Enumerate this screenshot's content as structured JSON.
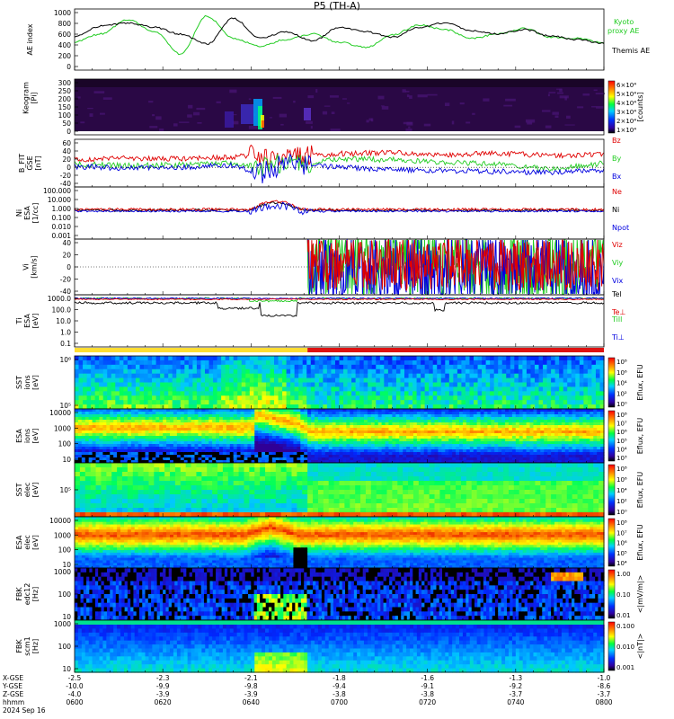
{
  "title": "P5 (TH-A)",
  "date_label": "2024 Sep 16",
  "colors": {
    "black": "#000000",
    "red": "#e00000",
    "green": "#22cc22",
    "blue": "#0000e0"
  },
  "chart_data": [
    {
      "type": "line",
      "panel": "ae",
      "ylabel": "AE index",
      "yticks": [
        "1000",
        "800",
        "600",
        "400",
        "200",
        "0"
      ],
      "ylim": [
        0,
        1000
      ],
      "series": [
        {
          "name": "Kyoto",
          "name2": "proxy AE",
          "color": "#22cc22",
          "x": [
            0,
            0.05,
            0.1,
            0.15,
            0.2,
            0.25,
            0.3,
            0.35,
            0.4,
            0.45,
            0.5,
            0.55,
            0.6,
            0.65,
            0.7,
            0.75,
            0.8,
            0.85,
            0.9,
            0.95,
            1
          ],
          "y": [
            460,
            600,
            860,
            650,
            240,
            920,
            520,
            380,
            500,
            600,
            450,
            360,
            580,
            760,
            680,
            520,
            600,
            700,
            540,
            520,
            440
          ]
        },
        {
          "name": "Themis AE",
          "color": "#000000",
          "x": [
            0,
            0.05,
            0.1,
            0.15,
            0.2,
            0.25,
            0.3,
            0.35,
            0.4,
            0.45,
            0.5,
            0.55,
            0.6,
            0.65,
            0.7,
            0.75,
            0.8,
            0.85,
            0.9,
            0.95,
            1
          ],
          "y": [
            560,
            740,
            800,
            720,
            600,
            420,
            880,
            520,
            640,
            480,
            720,
            640,
            540,
            720,
            800,
            660,
            600,
            680,
            560,
            500,
            430
          ]
        }
      ]
    },
    {
      "type": "heatmap",
      "panel": "keogram",
      "ylabel": "Keogram",
      "ylabel2": "[Pi]",
      "yticks": [
        "300",
        "250",
        "200",
        "150",
        "100",
        "50",
        "0"
      ],
      "colorbar_ticks": [
        "6×10⁴",
        "5×10⁴",
        "4×10⁴",
        "3×10⁴",
        "2×10⁴",
        "1×10⁴"
      ],
      "colorbar_label": "[counts]"
    },
    {
      "type": "line",
      "panel": "bfield",
      "ylabel": "B_FIT",
      "ylabel2": "GSE",
      "ylabel3": "[nT]",
      "yticks": [
        "60",
        "40",
        "20",
        "0",
        "-20",
        "-40"
      ],
      "ylim": [
        -40,
        60
      ],
      "series": [
        {
          "name": "Bz",
          "color": "#e00000",
          "x": [
            0,
            0.1,
            0.2,
            0.3,
            0.35,
            0.4,
            0.45,
            0.5,
            0.6,
            0.7,
            0.8,
            0.9,
            1
          ],
          "y": [
            18,
            22,
            20,
            25,
            30,
            20,
            28,
            32,
            35,
            30,
            33,
            28,
            30
          ]
        },
        {
          "name": "By",
          "color": "#22cc22",
          "x": [
            0,
            0.1,
            0.2,
            0.3,
            0.35,
            0.4,
            0.45,
            0.5,
            0.6,
            0.7,
            0.8,
            0.9,
            1
          ],
          "y": [
            8,
            4,
            6,
            10,
            -5,
            15,
            12,
            20,
            18,
            12,
            8,
            -5,
            10
          ]
        },
        {
          "name": "Bx",
          "color": "#0000e0",
          "x": [
            0,
            0.1,
            0.2,
            0.3,
            0.35,
            0.4,
            0.45,
            0.5,
            0.6,
            0.7,
            0.8,
            0.9,
            1
          ],
          "y": [
            2,
            -2,
            0,
            5,
            -15,
            8,
            4,
            0,
            -5,
            -8,
            -10,
            -12,
            -6
          ]
        }
      ]
    },
    {
      "type": "line",
      "panel": "density",
      "ylabel": "Ni",
      "ylabel2": "ESA",
      "ylabel3": "[1/cc]",
      "yticks": [
        "100.000",
        "10.000",
        "1.000",
        "0.100",
        "0.010",
        "0.001"
      ],
      "series": [
        {
          "name": "Ne",
          "color": "#e00000"
        },
        {
          "name": "Ni",
          "color": "#000000"
        },
        {
          "name": "Npot",
          "color": "#0000e0"
        }
      ]
    },
    {
      "type": "line",
      "panel": "velocity",
      "ylabel": "Vi",
      "ylabel2": "[km/s]",
      "yticks": [
        "40",
        "20",
        "0",
        "-20",
        "-40"
      ],
      "ylim": [
        -50,
        50
      ],
      "series": [
        {
          "name": "Viz",
          "color": "#e00000"
        },
        {
          "name": "Viy",
          "color": "#22cc22"
        },
        {
          "name": "Vix",
          "color": "#0000e0"
        }
      ]
    },
    {
      "type": "line",
      "panel": "temperature",
      "ylabel": "Ti",
      "ylabel2": "ESA",
      "ylabel3": "[eV]",
      "yticks": [
        "1000.0",
        "100.0",
        "10.0",
        "1.0",
        "0.1"
      ],
      "series": [
        {
          "name": "Tel",
          "color": "#000000"
        },
        {
          "name": "Te⊥",
          "color": "#e00000"
        },
        {
          "name": "Till",
          "color": "#22cc22"
        },
        {
          "name": "Ti⊥",
          "color": "#0000e0"
        }
      ]
    },
    {
      "type": "heatmap",
      "panel": "sst_ion",
      "ylabel": "SST",
      "ylabel2": "ions",
      "ylabel3": "[eV]",
      "yticks": [
        "10⁶",
        "10⁵"
      ],
      "colorbar_ticks": [
        "10⁸",
        "10⁶",
        "10⁴",
        "10²",
        "10⁰"
      ],
      "colorbar_label": "Eflux, EFU"
    },
    {
      "type": "heatmap",
      "panel": "esa_ion",
      "ylabel": "ESA",
      "ylabel2": "ions",
      "ylabel3": "[eV]",
      "yticks": [
        "10000",
        "1000",
        "100",
        "10"
      ],
      "colorbar_ticks": [
        "10⁸",
        "10⁷",
        "10⁶",
        "10⁵",
        "10⁴",
        "10³"
      ],
      "colorbar_label": "Eflux, EFU"
    },
    {
      "type": "heatmap",
      "panel": "sst_elec",
      "ylabel": "SST",
      "ylabel2": "elec",
      "ylabel3": "[eV]",
      "yticks": [
        "10⁵"
      ],
      "colorbar_ticks": [
        "10⁸",
        "10⁶",
        "10⁴",
        "10²",
        "10⁰"
      ],
      "colorbar_label": "Eflux, EFU"
    },
    {
      "type": "heatmap",
      "panel": "esa_elec",
      "ylabel": "ESA",
      "ylabel2": "elec",
      "ylabel3": "[eV]",
      "yticks": [
        "10000",
        "1000",
        "100",
        "10"
      ],
      "colorbar_ticks": [
        "10⁸",
        "10⁷",
        "10⁶",
        "10⁵",
        "10⁴"
      ],
      "colorbar_label": "Eflux, EFU"
    },
    {
      "type": "heatmap",
      "panel": "fbk_e",
      "ylabel": "FBK",
      "ylabel2": "edc12",
      "ylabel3": "[Hz]",
      "yticks": [
        "1000",
        "100",
        "10"
      ],
      "colorbar_ticks": [
        "1.00",
        "0.10",
        "0.01"
      ],
      "colorbar_label": "<|mV/m|>"
    },
    {
      "type": "heatmap",
      "panel": "fbk_b",
      "ylabel": "FBK",
      "ylabel2": "scm1",
      "ylabel3": "[Hz]",
      "yticks": [
        "1000",
        "100",
        "10"
      ],
      "colorbar_ticks": [
        "0.100",
        "0.010",
        "0.001"
      ],
      "colorbar_label": "<|nT|>"
    }
  ],
  "time_axis": {
    "rows": [
      {
        "label": "X-GSE",
        "values": [
          "-2.5",
          "-2.3",
          "-2.1",
          "-1.8",
          "-1.6",
          "-1.3",
          "-1.0"
        ]
      },
      {
        "label": "Y-GSE",
        "values": [
          "-10.0",
          "-9.9",
          "-9.8",
          "-9.4",
          "-9.1",
          "-9.2",
          "-8.6"
        ]
      },
      {
        "label": "Z-GSE",
        "values": [
          "-4.0",
          "-3.9",
          "-3.9",
          "-3.8",
          "-3.8",
          "-3.7",
          "-3.7"
        ]
      },
      {
        "label": "hhmm",
        "values": [
          "0600",
          "0620",
          "0640",
          "0700",
          "0720",
          "0740",
          "0800"
        ]
      }
    ]
  }
}
